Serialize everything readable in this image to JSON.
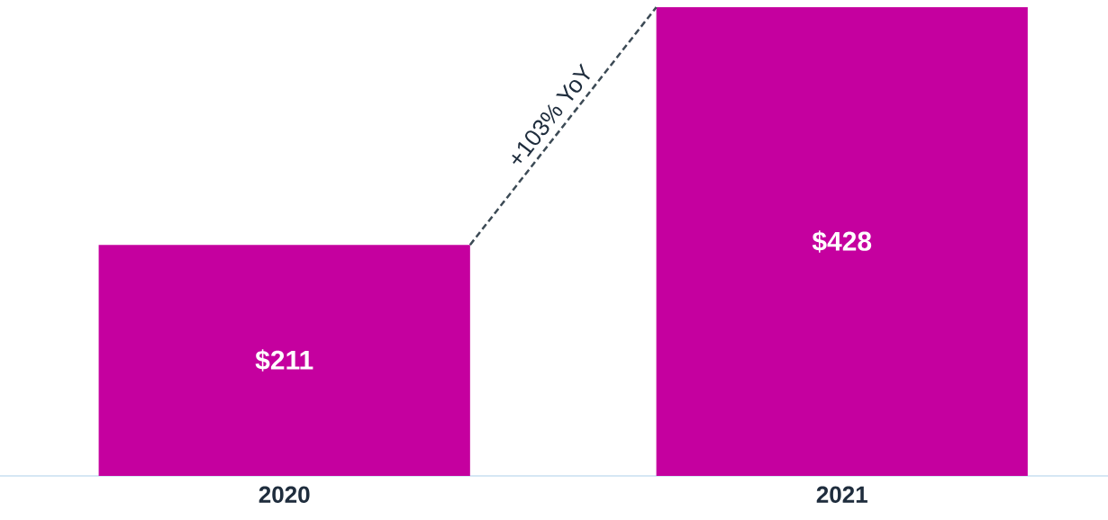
{
  "chart_data": {
    "type": "bar",
    "categories": [
      "2020",
      "2021"
    ],
    "values": [
      211,
      428
    ],
    "value_labels": [
      "$211",
      "$428"
    ],
    "color": "#c5009f",
    "annotations": [
      "+103% YoY"
    ]
  }
}
